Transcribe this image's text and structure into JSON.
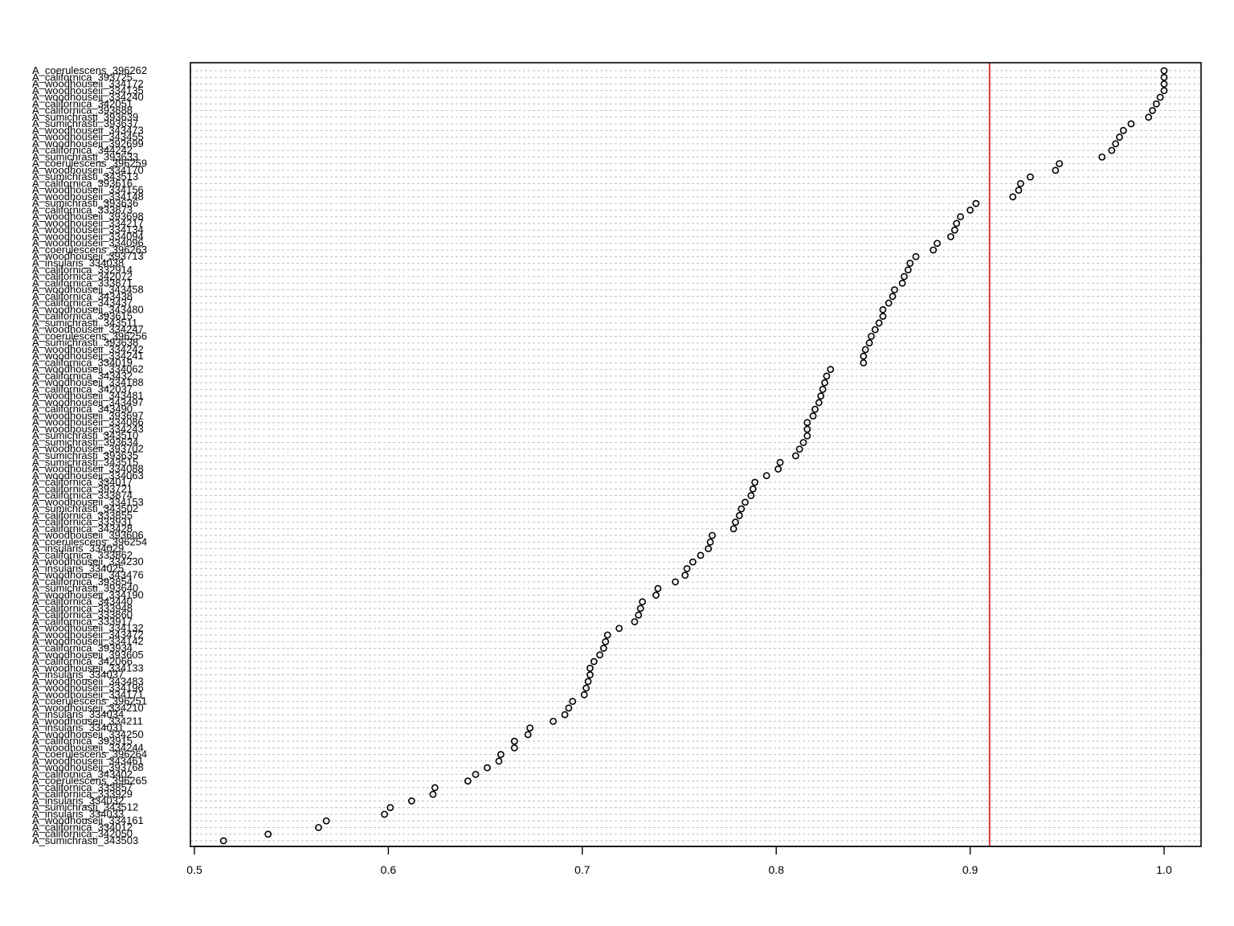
{
  "chart_data": {
    "type": "scatter",
    "title": "",
    "xlabel": "",
    "ylabel": "",
    "xlim": [
      0.5,
      1.0
    ],
    "x_ticks": [
      0.5,
      0.6,
      0.7,
      0.8,
      0.9,
      1.0
    ],
    "x_tick_labels": [
      "0.5",
      "0.6",
      "0.7",
      "0.8",
      "0.9",
      "1.0"
    ],
    "grid": "horizontal dashed",
    "reference_line": {
      "x": 0.91,
      "color": "#d62728"
    },
    "point_color": "#000000",
    "categories": [
      "A_coerulescens_396262",
      "A_californica_393725",
      "A_woodhouseii_334172",
      "A_woodhouseii_334135",
      "A_woodhouseii_334240",
      "A_californica_342051",
      "A_californica_393888",
      "A_sumichrasti_393639",
      "A_sumichrasti_393637",
      "A_woodhouseii_343473",
      "A_woodhouseii_343455",
      "A_woodhouseii_392699",
      "A_californica_344242",
      "A_sumichrasti_393633",
      "A_coerulescens_396259",
      "A_woodhouseii_334170",
      "A_sumichrasti_343513",
      "A_californica_393616",
      "A_woodhouseii_334156",
      "A_woodhouseii_334148",
      "A_sumichrasti_393636",
      "A_californica_333873",
      "A_woodhouseii_393698",
      "A_woodhouseii_334217",
      "A_woodhouseii_334134",
      "A_woodhouseii_334094",
      "A_woodhouseii_334096",
      "A_coerulescens_396263",
      "A_woodhouseii_393713",
      "A_insularis_334038",
      "A_californica_332914",
      "A_californica_342072",
      "A_californica_333871",
      "A_woodhouseii_343458",
      "A_californica_343438",
      "A_californica_343437",
      "A_woodhouseii_343480",
      "A_californica_393615",
      "A_sumichrasti_343511",
      "A_woodhouseii_334247",
      "A_coerulescens_396256",
      "A_sumichrasti_393638",
      "A_woodhouseii_334242",
      "A_woodhouseii_334241",
      "A_californica_334019",
      "A_woodhouseii_334062",
      "A_californica_343432",
      "A_woodhouseii_334188",
      "A_californica_342037",
      "A_woodhouseii_343481",
      "A_woodhouseii_343497",
      "A_californica_343490",
      "A_woodhouseii_393697",
      "A_woodhouseii_334086",
      "A_woodhouseii_334243",
      "A_sumichrasti_343510",
      "A_sumichrasti_393634",
      "A_woodhouseii_393702",
      "A_sumichrasti_393635",
      "A_sumichrasti_343515",
      "A_woodhouseii_334088",
      "A_woodhouseii_334063",
      "A_californica_334017",
      "A_californica_393721",
      "A_californica_333874",
      "A_woodhouseii_334153",
      "A_sumichrasti_343502",
      "A_californica_333855",
      "A_californica_333931",
      "A_californica_343428",
      "A_woodhouseii_393606",
      "A_coerulescens_396254",
      "A_insularis_334029",
      "A_californica_333862",
      "A_woodhouseii_334230",
      "A_insularis_334025",
      "A_woodhouseii_343476",
      "A_californica_393854",
      "A_sumichrasti_393640",
      "A_woodhouseii_334190",
      "A_californica_343440",
      "A_californica_333948",
      "A_californica_333860",
      "A_californica_333917",
      "A_woodhouseii_334132",
      "A_woodhouseii_343472",
      "A_woodhouseii_334142",
      "A_californica_393934",
      "A_woodhouseii_393605",
      "A_californica_342066",
      "A_woodhouseii_334133",
      "A_insularis_334037",
      "A_woodhouseii_343483",
      "A_woodhouseii_334196",
      "A_woodhouseii_334171",
      "A_coerulescens_396251",
      "A_woodhouseii_334210",
      "A_insularis_334034",
      "A_woodhouseii_334211",
      "A_insularis_334031",
      "A_woodhouseii_334250",
      "A_californica_393915",
      "A_woodhouseii_334244",
      "A_coerulescens_396264",
      "A_woodhouseii_343461",
      "A_woodhouseii_393768",
      "A_californica_343402",
      "A_coerulescens_396265",
      "A_californica_333857",
      "A_californica_333929",
      "A_insularis_334032",
      "A_sumichrasti_343512",
      "A_insularis_334033",
      "A_woodhouseii_334161",
      "A_californica_334012",
      "A_californica_342050",
      "A_sumichrasti_343503"
    ],
    "values": [
      1.0,
      1.0,
      1.0,
      1.0,
      0.998,
      0.996,
      0.994,
      0.992,
      0.983,
      0.979,
      0.977,
      0.975,
      0.973,
      0.968,
      0.946,
      0.944,
      0.931,
      0.926,
      0.925,
      0.922,
      0.903,
      0.9,
      0.895,
      0.893,
      0.892,
      0.89,
      0.883,
      0.881,
      0.872,
      0.869,
      0.868,
      0.866,
      0.865,
      0.861,
      0.86,
      0.858,
      0.855,
      0.855,
      0.853,
      0.851,
      0.849,
      0.848,
      0.846,
      0.845,
      0.845,
      0.828,
      0.826,
      0.825,
      0.824,
      0.823,
      0.822,
      0.82,
      0.819,
      0.816,
      0.816,
      0.816,
      0.814,
      0.812,
      0.81,
      0.802,
      0.801,
      0.795,
      0.789,
      0.788,
      0.787,
      0.784,
      0.782,
      0.781,
      0.779,
      0.778,
      0.767,
      0.766,
      0.765,
      0.761,
      0.757,
      0.754,
      0.753,
      0.748,
      0.739,
      0.738,
      0.731,
      0.73,
      0.729,
      0.727,
      0.719,
      0.713,
      0.712,
      0.711,
      0.709,
      0.706,
      0.704,
      0.704,
      0.703,
      0.702,
      0.701,
      0.695,
      0.693,
      0.691,
      0.685,
      0.673,
      0.672,
      0.665,
      0.665,
      0.658,
      0.657,
      0.651,
      0.645,
      0.641,
      0.624,
      0.623,
      0.612,
      0.601,
      0.598,
      0.568,
      0.564,
      0.538,
      0.515
    ]
  }
}
